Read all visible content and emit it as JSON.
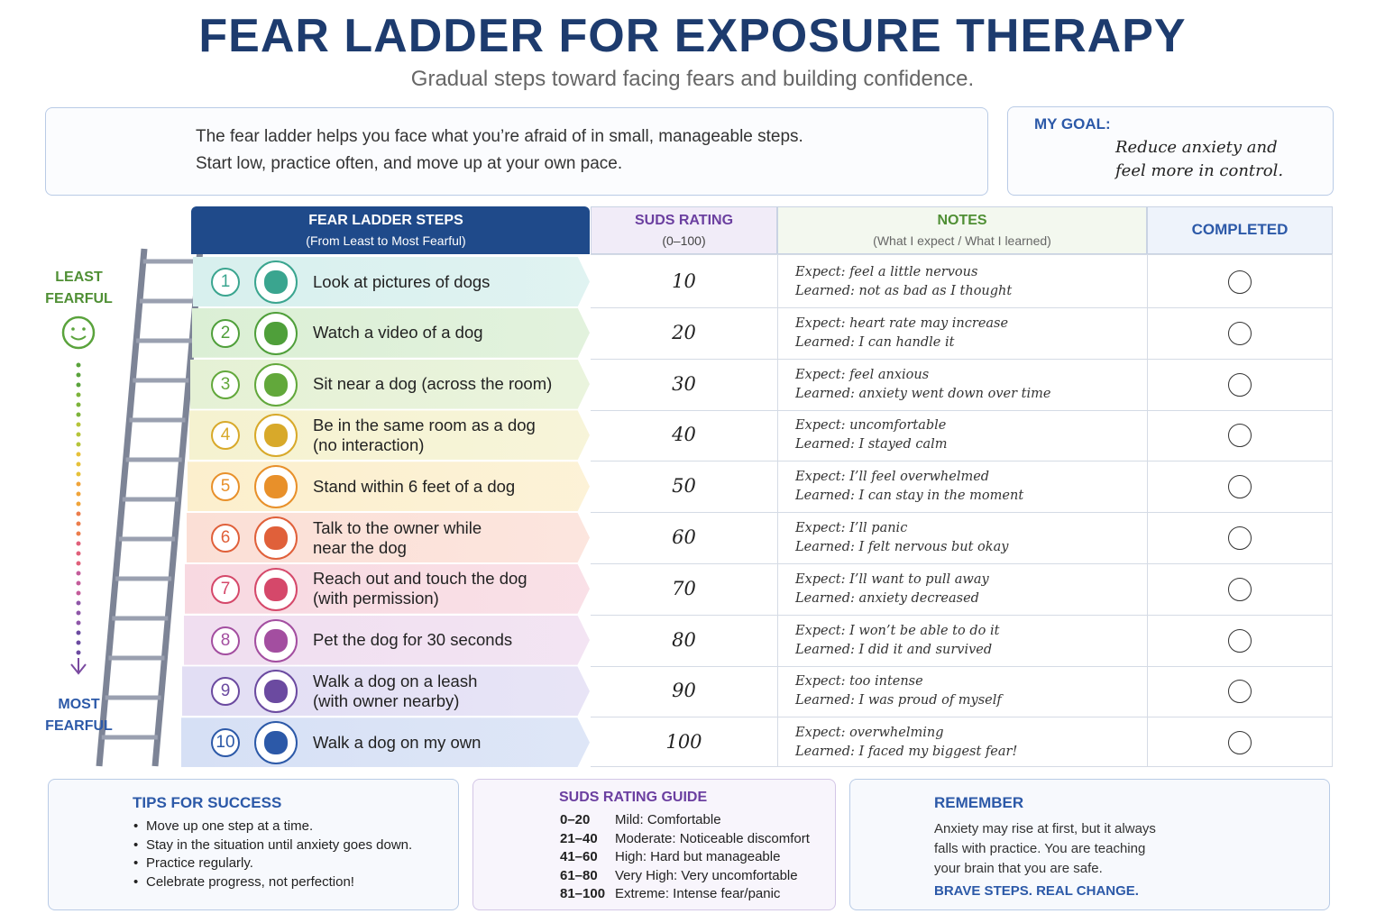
{
  "header": {
    "title": "FEAR LADDER FOR EXPOSURE THERAPY",
    "subtitle": "Gradual steps toward facing fears and building confidence."
  },
  "intro": {
    "lines": [
      "The fear ladder helps you face what you’re afraid of in small, manageable steps.",
      "Start low, practice often, and move up at your own pace."
    ]
  },
  "goal": {
    "label": "MY GOAL:",
    "lines": [
      "Reduce anxiety and",
      "feel more in control."
    ]
  },
  "scale": {
    "top": [
      "LEAST",
      "FEARFUL"
    ],
    "bottom": [
      "MOST",
      "FEARFUL"
    ]
  },
  "table": {
    "headers": [
      {
        "title": "FEAR LADDER STEPS",
        "sub": "(From Least to Most Fearful)"
      },
      {
        "title": "SUDS RATING",
        "sub": "(0–100)"
      },
      {
        "title": "NOTES",
        "sub": "(What I expect / What I learned)"
      },
      {
        "title": "COMPLETED"
      }
    ],
    "rows": [
      {
        "step": 1,
        "text": [
          "Look at pictures of dogs"
        ],
        "suds": 10,
        "expect": "Expect: feel a little nervous",
        "learned": "Learned: not as bad as I thought"
      },
      {
        "step": 2,
        "text": [
          "Watch a video of a dog"
        ],
        "suds": 20,
        "expect": "Expect: heart rate may increase",
        "learned": "Learned: I can handle it"
      },
      {
        "step": 3,
        "text": [
          "Sit near a dog (across the room)"
        ],
        "suds": 30,
        "expect": "Expect: feel anxious",
        "learned": "Learned: anxiety went down over time"
      },
      {
        "step": 4,
        "text": [
          "Be in the same room as a dog",
          "(no interaction)"
        ],
        "suds": 40,
        "expect": "Expect: uncomfortable",
        "learned": "Learned: I stayed calm"
      },
      {
        "step": 5,
        "text": [
          "Stand within 6 feet of a dog"
        ],
        "suds": 50,
        "expect": "Expect: I’ll feel overwhelmed",
        "learned": "Learned: I can stay in the moment"
      },
      {
        "step": 6,
        "text": [
          "Talk to the owner while",
          "near the dog"
        ],
        "suds": 60,
        "expect": "Expect: I’ll panic",
        "learned": "Learned: I felt nervous but okay"
      },
      {
        "step": 7,
        "text": [
          "Reach out and touch the dog",
          "(with permission)"
        ],
        "suds": 70,
        "expect": "Expect: I’ll want to pull away",
        "learned": "Learned: anxiety decreased"
      },
      {
        "step": 8,
        "text": [
          "Pet the dog for 30 seconds"
        ],
        "suds": 80,
        "expect": "Expect: I won’t be able to do it",
        "learned": "Learned: I did it and survived"
      },
      {
        "step": 9,
        "text": [
          "Walk a dog on a leash",
          "(with owner nearby)"
        ],
        "suds": 90,
        "expect": "Expect: too intense",
        "learned": "Learned: I was proud of myself"
      },
      {
        "step": 10,
        "text": [
          "Walk a dog on my own"
        ],
        "suds": 100,
        "expect": "Expect: overwhelming",
        "learned": "Learned: I faced my biggest fear!"
      }
    ]
  },
  "tips": {
    "title": "TIPS FOR SUCCESS",
    "items": [
      "Move up one step at a time.",
      "Stay in the situation until anxiety goes down.",
      "Practice regularly.",
      "Celebrate progress, not perfection!"
    ]
  },
  "guide": {
    "title": "SUDS RATING GUIDE",
    "rows": [
      {
        "range": "0–20",
        "desc": "Mild: Comfortable"
      },
      {
        "range": "21–40",
        "desc": "Moderate: Noticeable discomfort"
      },
      {
        "range": "41–60",
        "desc": "High: Hard but manageable"
      },
      {
        "range": "61–80",
        "desc": "Very High: Very uncomfortable"
      },
      {
        "range": "81–100",
        "desc": "Extreme: Intense fear/panic"
      }
    ]
  },
  "remember": {
    "title": "REMEMBER",
    "lines": [
      "Anxiety may rise at first, but it always",
      "falls with practice. You are teaching",
      "your brain that you are safe."
    ],
    "tagline": "BRAVE STEPS. REAL CHANGE."
  }
}
